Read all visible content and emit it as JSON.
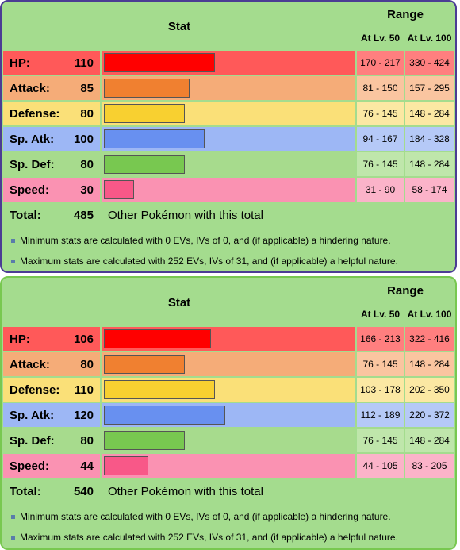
{
  "headers": {
    "stat": "Stat",
    "range": "Range",
    "lv50": "At Lv. 50",
    "lv100": "At Lv. 100"
  },
  "notes": {
    "min": "Minimum stats are calculated with 0 EVs, IVs of 0, and (if applicable) a hindering nature.",
    "max": "Maximum stats are calculated with 252 EVs, IVs of 31, and (if applicable) a helpful nature."
  },
  "total_label": "Total:",
  "total_text": "Other Pokémon with this total",
  "stat_labels": [
    "HP:",
    "Attack:",
    "Defense:",
    "Sp. Atk:",
    "Sp. Def:",
    "Speed:"
  ],
  "colors": {
    "panel_a_border": "#4b3c94",
    "panel_b_border": "#78c850",
    "panel_bg": "#a4dc8e",
    "hp": "#ff0000",
    "attack": "#f08030",
    "defense": "#f8d030",
    "sp_atk": "#6890f0",
    "sp_def": "#78c850",
    "speed": "#f85888"
  },
  "panels": [
    {
      "total": "485",
      "stats": [
        {
          "value": "110",
          "r50": "170 - 217",
          "r100": "330 - 424"
        },
        {
          "value": "85",
          "r50": "81 - 150",
          "r100": "157 - 295"
        },
        {
          "value": "80",
          "r50": "76 - 145",
          "r100": "148 - 284"
        },
        {
          "value": "100",
          "r50": "94 - 167",
          "r100": "184 - 328"
        },
        {
          "value": "80",
          "r50": "76 - 145",
          "r100": "148 - 284"
        },
        {
          "value": "30",
          "r50": "31 - 90",
          "r100": "58 - 174"
        }
      ]
    },
    {
      "total": "540",
      "stats": [
        {
          "value": "106",
          "r50": "166 - 213",
          "r100": "322 - 416"
        },
        {
          "value": "80",
          "r50": "76 - 145",
          "r100": "148 - 284"
        },
        {
          "value": "110",
          "r50": "103 - 178",
          "r100": "202 - 350"
        },
        {
          "value": "120",
          "r50": "112 - 189",
          "r100": "220 - 372"
        },
        {
          "value": "80",
          "r50": "76 - 145",
          "r100": "148 - 284"
        },
        {
          "value": "44",
          "r50": "44 - 105",
          "r100": "83 - 205"
        }
      ]
    }
  ]
}
